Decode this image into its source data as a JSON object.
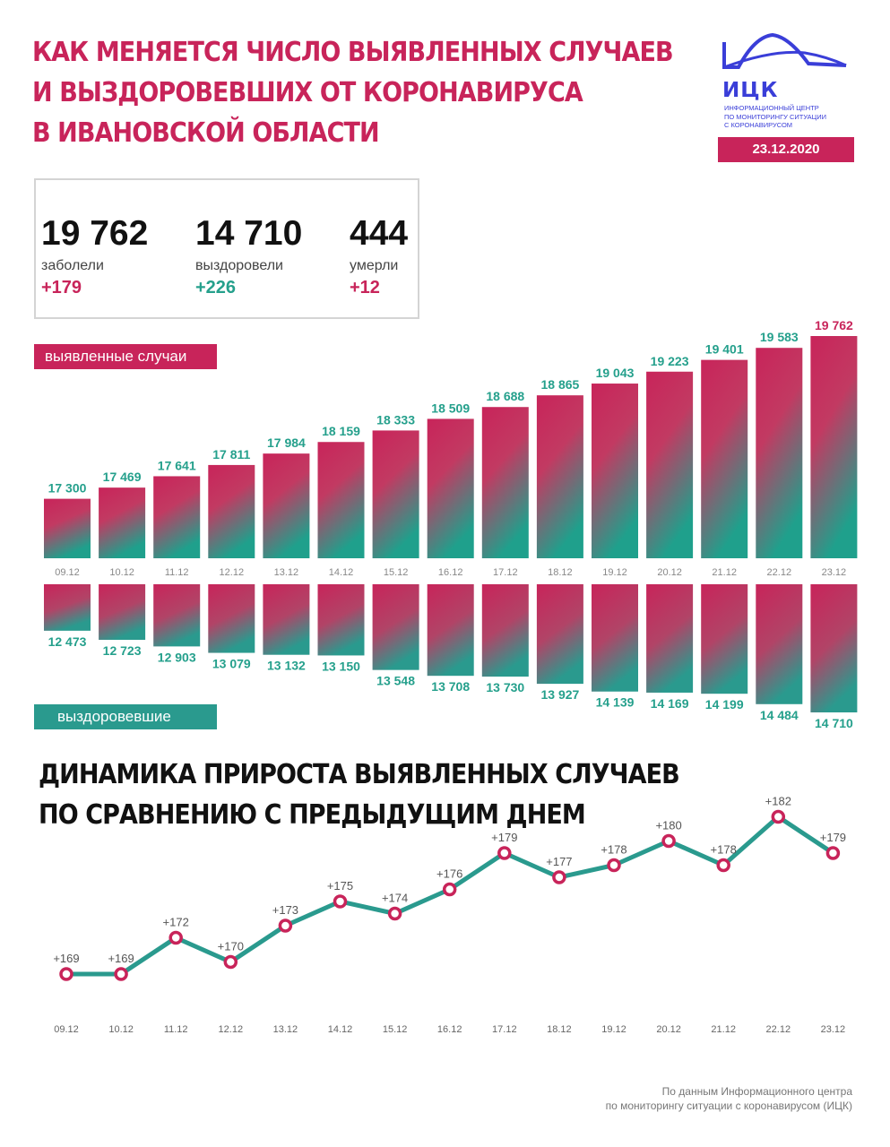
{
  "title_lines": [
    "КАК МЕНЯЕТСЯ ЧИСЛО ВЫЯВЛЕННЫХ СЛУЧАЕВ",
    "И ВЫЗДОРОВЕВШИХ ОТ КОРОНАВИРУСА",
    "В ИВАНОВСКОЙ ОБЛАСТИ"
  ],
  "logo": {
    "abbr": "ИЦК",
    "subtitle_lines": [
      "ИНФОРМАЦИОННЫЙ ЦЕНТР",
      "ПО МОНИТОРИНГУ СИТУАЦИИ",
      "С КОРОНАВИРУСОМ"
    ]
  },
  "date": "23.12.2020",
  "stats": [
    {
      "value": "19 762",
      "label": "заболели",
      "delta": "+179"
    },
    {
      "value": "14 710",
      "label": "выздоровели",
      "delta": "+226"
    },
    {
      "value": "444",
      "label": "умерли",
      "delta": "+12"
    }
  ],
  "tags": {
    "cases": "выявленные случаи",
    "recovered": "выздоровевшие"
  },
  "section2_lines": [
    "ДИНАМИКА ПРИРОСТА ВЫЯВЛЕННЫХ СЛУЧАЕВ",
    "ПО СРАВНЕНИЮ С ПРЕДЫДУЩИМ ДНЕМ"
  ],
  "footer_lines": [
    "По данным Информационного центра",
    "по мониторингу ситуации с коронавирусом (ИЦК)"
  ],
  "colors": {
    "pink": "#c8245a",
    "teal": "#25a08c",
    "line": "#2a9a8e"
  },
  "chart_data": [
    {
      "type": "bar",
      "categories": [
        "09.12",
        "10.12",
        "11.12",
        "12.12",
        "13.12",
        "14.12",
        "15.12",
        "16.12",
        "17.12",
        "18.12",
        "19.12",
        "20.12",
        "21.12",
        "22.12",
        "23.12"
      ],
      "series": [
        {
          "name": "выявленные случаи",
          "values": [
            17300,
            17469,
            17641,
            17811,
            17984,
            18159,
            18333,
            18509,
            18688,
            18865,
            19043,
            19223,
            19401,
            19583,
            19762
          ],
          "labels": [
            "17 300",
            "17 469",
            "17 641",
            "17 811",
            "17 984",
            "18 159",
            "18 333",
            "18 509",
            "18 688",
            "18 865",
            "19 043",
            "19 223",
            "19 401",
            "19 583",
            "19 762"
          ]
        },
        {
          "name": "выздоровевшие",
          "values": [
            12473,
            12723,
            12903,
            13079,
            13132,
            13150,
            13548,
            13708,
            13730,
            13927,
            14139,
            14169,
            14199,
            14484,
            14710
          ],
          "labels": [
            "12 473",
            "12 723",
            "12 903",
            "13 079",
            "13 132",
            "13 150",
            "13 548",
            "13 708",
            "13 730",
            "13 927",
            "14 139",
            "14 169",
            "14 199",
            "14 484",
            "14 710"
          ]
        }
      ]
    },
    {
      "type": "line",
      "categories": [
        "09.12",
        "10.12",
        "11.12",
        "12.12",
        "13.12",
        "14.12",
        "15.12",
        "16.12",
        "17.12",
        "18.12",
        "19.12",
        "20.12",
        "21.12",
        "22.12",
        "23.12"
      ],
      "values": [
        169,
        169,
        172,
        170,
        173,
        175,
        174,
        176,
        179,
        177,
        178,
        180,
        178,
        182,
        179
      ],
      "labels": [
        "+169",
        "+169",
        "+172",
        "+170",
        "+173",
        "+175",
        "+174",
        "+176",
        "+179",
        "+177",
        "+178",
        "+180",
        "+178",
        "+182",
        "+179"
      ]
    }
  ]
}
